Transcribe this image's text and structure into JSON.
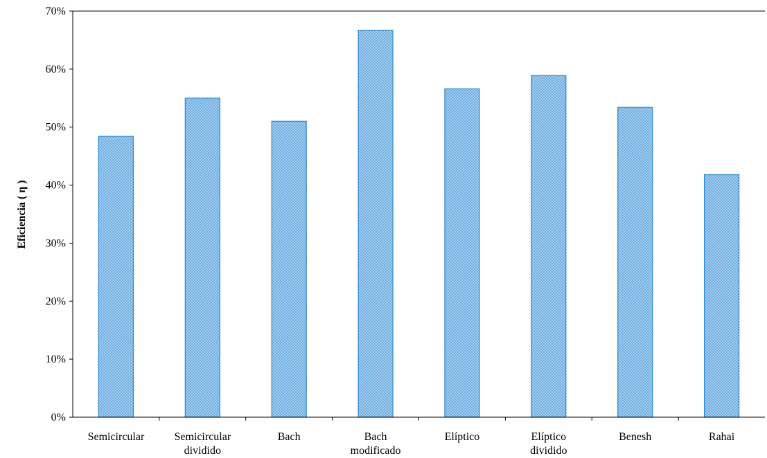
{
  "chart_data": {
    "type": "bar",
    "title": "",
    "xlabel": "",
    "ylabel": "Eficiencia ( η )",
    "categories": [
      [
        "Semicircular"
      ],
      [
        "Semicircular",
        "dividido"
      ],
      [
        "Bach"
      ],
      [
        "Bach",
        "modificado"
      ],
      [
        "Elíptico"
      ],
      [
        "Elíptico",
        "dividido"
      ],
      [
        "Benesh"
      ],
      [
        "Rahai"
      ]
    ],
    "values": [
      0.484,
      0.55,
      0.51,
      0.667,
      0.566,
      0.589,
      0.534,
      0.418
    ],
    "ylim": [
      0,
      0.7
    ],
    "yticks": [
      0,
      0.1,
      0.2,
      0.3,
      0.4,
      0.5,
      0.6,
      0.7
    ],
    "ytick_labels": [
      "0%",
      "10%",
      "20%",
      "30%",
      "40%",
      "50%",
      "60%",
      "70%"
    ],
    "grid": false,
    "legend": "none",
    "colors": {
      "bar_fill": "#a9cdee",
      "bar_pattern": "#6aaee2",
      "bar_stroke": "#2a86cc",
      "axis": "#000000"
    }
  }
}
